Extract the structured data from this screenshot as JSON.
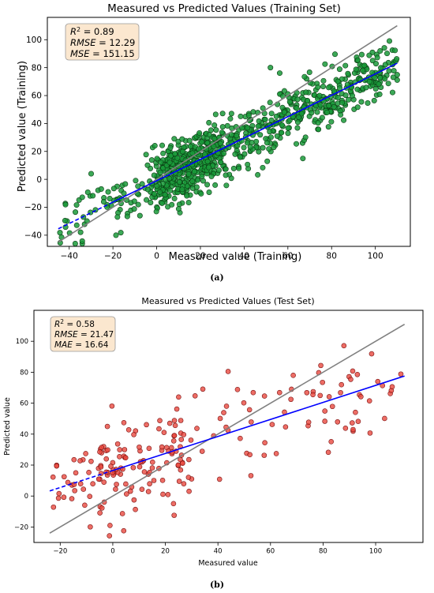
{
  "chart_data": [
    {
      "type": "scatter",
      "title": "Measured vs Predicted Values (Training Set)",
      "xlabel": "Measured value (Training)",
      "ylabel": "Predicted value (Training)",
      "xlim": [
        -50,
        116
      ],
      "ylim": [
        -48,
        116
      ],
      "x_ticks": [
        -40,
        -20,
        0,
        20,
        40,
        60,
        80,
        100
      ],
      "y_ticks": [
        -40,
        -20,
        0,
        20,
        40,
        60,
        80,
        100
      ],
      "x_tick_labels": [
        "−40",
        "−20",
        "0",
        "20",
        "40",
        "60",
        "80",
        "100"
      ],
      "y_tick_labels": [
        "−40",
        "−20",
        "0",
        "20",
        "40",
        "60",
        "80",
        "100"
      ],
      "grid": false,
      "point_color": "#1a9a3a",
      "point_edge": "#0b3d14",
      "n_points": 900,
      "x_range_of_points": [
        -45,
        110
      ],
      "fit_line": {
        "slope": 0.765,
        "intercept": -1.0,
        "x_range": [
          -45,
          110
        ],
        "color": "#0000ff",
        "style": "dashed-then-solid"
      },
      "identity_line": {
        "x_range": [
          -45,
          110
        ],
        "color": "#808080"
      },
      "stats": {
        "line1_label": "R",
        "line1_sup": "2",
        "line1_value": " = 0.89",
        "line2_label": "RMSE",
        "line2_value": " = 12.29",
        "line3_label": "MSE",
        "line3_value": " = 151.15",
        "position": "top-left"
      },
      "caption": "(a)"
    },
    {
      "type": "scatter",
      "title": "Measured vs Predicted Values (Test Set)",
      "xlabel": "Measured value",
      "ylabel": "Predicted value",
      "xlim": [
        -30,
        118
      ],
      "ylim": [
        -30,
        120
      ],
      "x_ticks": [
        -20,
        0,
        20,
        40,
        60,
        80,
        100
      ],
      "y_ticks": [
        -20,
        0,
        20,
        40,
        60,
        80,
        100
      ],
      "x_tick_labels": [
        "−20",
        "0",
        "20",
        "40",
        "60",
        "80",
        "100"
      ],
      "y_tick_labels": [
        "−20",
        "0",
        "20",
        "40",
        "60",
        "80",
        "100"
      ],
      "grid": false,
      "point_color": "#e8483f",
      "point_edge": "#7a1010",
      "n_points": 220,
      "x_range_of_points": [
        -24,
        111
      ],
      "fit_line": {
        "slope": 0.55,
        "intercept": 16.5,
        "x_range": [
          -24,
          111
        ],
        "color": "#0000ff",
        "style": "dashed-then-solid"
      },
      "identity_line": {
        "x_range": [
          -24,
          111
        ],
        "color": "#808080"
      },
      "stats": {
        "line1_label": "R",
        "line1_sup": "2",
        "line1_value": " = 0.58",
        "line2_label": "RMSE",
        "line2_value": " = 21.47",
        "line3_label": "MAE",
        "line3_value": " = 16.64",
        "position": "top-left"
      },
      "caption": "(b)"
    }
  ]
}
